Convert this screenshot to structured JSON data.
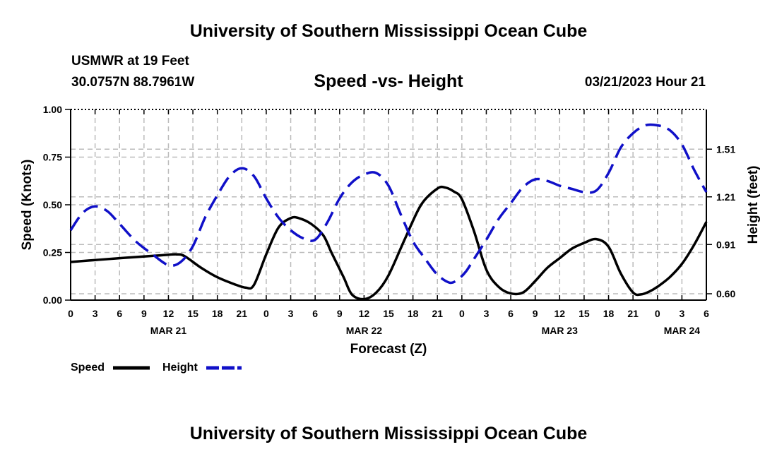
{
  "page": {
    "main_title": "University of Southern Mississippi Ocean Cube",
    "footer_title": "University of Southern Mississippi Ocean Cube",
    "station_name": "USMWR at 19 Feet",
    "station_coords": "30.0757N  88.7961W",
    "chart_title": "Speed -vs- Height",
    "datetime": "03/21/2023 Hour 21"
  },
  "colors": {
    "speed": "#000000",
    "height": "#1010c8",
    "grid": "#bbbbbb"
  },
  "chart_data": {
    "type": "line",
    "title": "Speed -vs- Height",
    "xlabel": "Forecast (Z)",
    "ylabel": "Speed (Knots)",
    "y2label": "Height (feet)",
    "x_unit": "hours since Mar 21 00Z",
    "xlim": [
      0,
      78
    ],
    "ylim": [
      0,
      1.0
    ],
    "y2lim": [
      0.56,
      1.76
    ],
    "x_tick_labels": [
      "0",
      "3",
      "6",
      "9",
      "12",
      "15",
      "18",
      "21",
      "0",
      "3",
      "6",
      "9",
      "12",
      "15",
      "18",
      "21",
      "0",
      "3",
      "6",
      "9",
      "12",
      "15",
      "18",
      "21",
      "0",
      "3",
      "6"
    ],
    "y_ticks": [
      "0.00",
      "0.25",
      "0.50",
      "0.75",
      "1.00"
    ],
    "y2_ticks": [
      "0.60",
      "0.91",
      "1.21",
      "1.51"
    ],
    "date_labels": [
      {
        "label": "MAR 21",
        "hour": 12
      },
      {
        "label": "MAR 22",
        "hour": 36
      },
      {
        "label": "MAR 23",
        "hour": 60
      },
      {
        "label": "MAR 24",
        "hour": 75
      }
    ],
    "grid": true,
    "legend_position": "bottom-left",
    "series": [
      {
        "name": "Speed",
        "axis": "left",
        "style": "solid",
        "x": [
          0,
          6,
          11,
          13,
          14,
          16,
          18,
          20,
          21.5,
          22.5,
          24,
          25.5,
          27,
          28,
          29.5,
          31,
          32,
          33.5,
          34.5,
          36,
          37.5,
          39,
          41,
          43,
          45,
          46,
          47,
          48,
          49.5,
          51,
          52.5,
          54,
          55.5,
          57,
          58.5,
          60,
          61.5,
          63,
          64.5,
          66,
          67.5,
          69,
          70,
          71,
          72,
          73.5,
          75,
          76.5,
          78
        ],
        "values": [
          0.2,
          0.22,
          0.235,
          0.24,
          0.23,
          0.17,
          0.12,
          0.085,
          0.065,
          0.08,
          0.24,
          0.38,
          0.43,
          0.43,
          0.4,
          0.34,
          0.25,
          0.12,
          0.03,
          0.005,
          0.04,
          0.13,
          0.32,
          0.5,
          0.585,
          0.59,
          0.57,
          0.53,
          0.36,
          0.16,
          0.07,
          0.035,
          0.04,
          0.1,
          0.17,
          0.22,
          0.27,
          0.3,
          0.32,
          0.28,
          0.14,
          0.04,
          0.03,
          0.045,
          0.07,
          0.12,
          0.19,
          0.29,
          0.41
        ]
      },
      {
        "name": "Height",
        "axis": "right",
        "style": "dashed",
        "x": [
          0,
          1.5,
          3,
          4.5,
          6,
          8,
          10,
          12,
          13.5,
          15,
          16.5,
          18,
          19.5,
          21,
          22.5,
          24,
          25.5,
          27,
          28.5,
          30,
          31.5,
          33,
          34.5,
          36,
          37.5,
          39,
          40.5,
          42,
          43.5,
          45,
          46.5,
          47.5,
          48.5,
          49.5,
          51,
          52.5,
          54,
          55.5,
          57,
          58.5,
          60,
          61.5,
          63,
          64.5,
          66,
          67.5,
          69,
          70.5,
          72,
          73.5,
          75,
          76.5,
          78
        ],
        "values": [
          1.0,
          1.11,
          1.15,
          1.12,
          1.04,
          0.93,
          0.85,
          0.78,
          0.8,
          0.9,
          1.08,
          1.22,
          1.34,
          1.39,
          1.34,
          1.2,
          1.08,
          1.0,
          0.95,
          0.94,
          1.05,
          1.2,
          1.3,
          1.35,
          1.36,
          1.28,
          1.1,
          0.93,
          0.82,
          0.72,
          0.67,
          0.69,
          0.74,
          0.82,
          0.94,
          1.07,
          1.17,
          1.27,
          1.32,
          1.31,
          1.28,
          1.26,
          1.24,
          1.25,
          1.36,
          1.52,
          1.61,
          1.66,
          1.66,
          1.63,
          1.54,
          1.38,
          1.24
        ]
      }
    ]
  }
}
